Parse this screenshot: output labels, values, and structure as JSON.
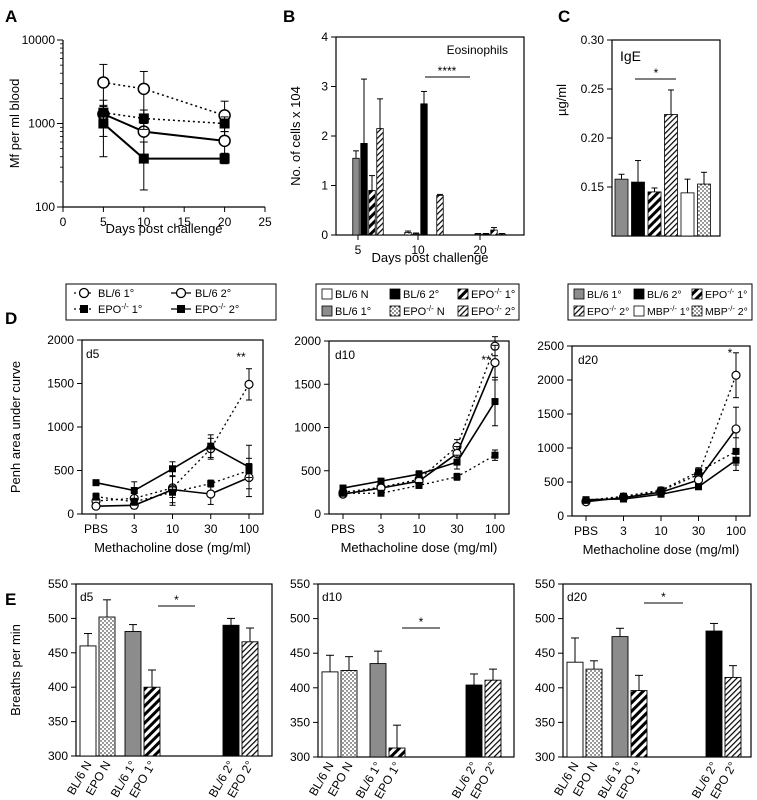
{
  "figure": {
    "panel_letters": [
      "A",
      "B",
      "C",
      "D",
      "E"
    ],
    "colors": {
      "black": "#000000",
      "gray": "#8c8c8c",
      "white": "#ffffff"
    }
  },
  "chart_data": [
    {
      "id": "A",
      "type": "line",
      "scale_y": "log",
      "xlabel": "Days post challenge",
      "ylabel": "Mf per ml  blood",
      "xlim": [
        0,
        25
      ],
      "ylim": [
        100,
        10000
      ],
      "xticks": [
        0,
        5,
        10,
        15,
        20,
        25
      ],
      "yticks": [
        100,
        1000,
        10000
      ],
      "ytick_labels": [
        "100",
        "1000",
        "10000"
      ],
      "x": [
        5,
        10,
        20
      ],
      "series": [
        {
          "name": "BL/6 1°",
          "marker": "open-circle",
          "dash": "dotted",
          "values": [
            3100,
            2600,
            1250
          ],
          "err": [
            2000,
            1600,
            600
          ]
        },
        {
          "name": "BL/6 2°",
          "marker": "open-circle",
          "dash": "solid",
          "values": [
            1300,
            800,
            620
          ],
          "err": [
            600,
            400,
            180
          ]
        },
        {
          "name": "EPO-/- 1°",
          "marker": "filled-square",
          "dash": "dotted",
          "values": [
            1350,
            1150,
            1000
          ],
          "err": [
            300,
            300,
            200
          ]
        },
        {
          "name": "EPO-/- 2°",
          "marker": "filled-square",
          "dash": "solid",
          "values": [
            1000,
            380,
            380
          ],
          "err": [
            600,
            220,
            50
          ]
        }
      ]
    },
    {
      "id": "B",
      "type": "bar",
      "annotation": "Eosinophils",
      "xlabel": "Days post challenge",
      "ylabel": "No. of cells x 104",
      "ylim": [
        0,
        4
      ],
      "yticks": [
        0,
        1,
        2,
        3,
        4
      ],
      "categories": [
        "5",
        "10",
        "20"
      ],
      "series": [
        {
          "name": "BL/6 N",
          "pattern": "white",
          "values": [
            0,
            0,
            0
          ],
          "err": [
            0,
            0,
            0
          ]
        },
        {
          "name": "EPO-/- N",
          "pattern": "dots",
          "values": [
            0,
            0.05,
            0
          ],
          "err": [
            0,
            0.03,
            0
          ]
        },
        {
          "name": "BL/6 1°",
          "pattern": "gray",
          "values": [
            1.55,
            0.02,
            0.02
          ],
          "err": [
            0.15,
            0.02,
            0.01
          ]
        },
        {
          "name": "BL/6 2°",
          "pattern": "black",
          "values": [
            1.85,
            2.65,
            0.02
          ],
          "err": [
            1.3,
            0.25,
            0.01
          ]
        },
        {
          "name": "EPO-/- 1°",
          "pattern": "hatch-thick",
          "values": [
            0.9,
            0,
            0.1
          ],
          "err": [
            0.3,
            0,
            0.05
          ]
        },
        {
          "name": "EPO-/- 2°",
          "pattern": "hatch-thin",
          "values": [
            2.15,
            0.8,
            0.02
          ],
          "err": [
            0.6,
            0.02,
            0.01
          ]
        }
      ],
      "significance": {
        "label": "****",
        "day": "10"
      }
    },
    {
      "id": "C",
      "type": "bar",
      "annotation": "IgE",
      "ylabel": "µg/ml",
      "ylim": [
        0.1,
        0.3
      ],
      "yticks": [
        0.15,
        0.2,
        0.25,
        0.3
      ],
      "ytick_labels": [
        "0.15",
        "0.20",
        "0.25",
        "0.30"
      ],
      "series": [
        {
          "name": "BL/6 1°",
          "pattern": "gray",
          "value": 0.158,
          "err": 0.005
        },
        {
          "name": "BL/6 2°",
          "pattern": "black",
          "value": 0.155,
          "err": 0.022
        },
        {
          "name": "EPO-/- 1°",
          "pattern": "hatch-thick",
          "value": 0.145,
          "err": 0.004
        },
        {
          "name": "EPO-/- 2°",
          "pattern": "hatch-thin",
          "value": 0.224,
          "err": 0.025
        },
        {
          "name": "MBP-/- 1°",
          "pattern": "white",
          "value": 0.144,
          "err": 0.014
        },
        {
          "name": "MBP-/- 2°",
          "pattern": "dots",
          "value": 0.153,
          "err": 0.012
        }
      ],
      "significance": {
        "label": "*"
      }
    },
    {
      "id": "D5",
      "type": "line",
      "label": "d5",
      "xlabel": "Methacholine dose (mg/ml)",
      "ylabel": "Penh area under curve",
      "categories": [
        "PBS",
        "3",
        "10",
        "30",
        "100"
      ],
      "ylim": [
        0,
        2000
      ],
      "yticks": [
        0,
        500,
        1000,
        1500,
        2000
      ],
      "series": [
        {
          "name": "BL/6 1°",
          "marker": "open-circle",
          "dash": "dotted",
          "values": [
            150,
            180,
            300,
            750,
            1490
          ],
          "err": [
            40,
            60,
            200,
            120,
            180
          ]
        },
        {
          "name": "BL/6 2°",
          "marker": "open-circle",
          "dash": "solid",
          "values": [
            90,
            100,
            280,
            230,
            420
          ],
          "err": [
            30,
            40,
            150,
            120,
            220
          ]
        },
        {
          "name": "EPO-/- 1°",
          "marker": "filled-square",
          "dash": "dotted",
          "values": [
            200,
            140,
            250,
            350,
            500
          ],
          "err": [
            40,
            40,
            60,
            40,
            80
          ]
        },
        {
          "name": "EPO-/- 2°",
          "marker": "filled-square",
          "dash": "solid",
          "values": [
            360,
            270,
            520,
            780,
            540
          ],
          "err": [
            30,
            100,
            80,
            130,
            250
          ]
        }
      ],
      "significance": {
        "label": "**"
      }
    },
    {
      "id": "D10",
      "type": "line",
      "label": "d10",
      "xlabel": "Methacholine dose (mg/ml)",
      "categories": [
        "PBS",
        "3",
        "10",
        "30",
        "100"
      ],
      "ylim": [
        0,
        2000
      ],
      "yticks": [
        0,
        500,
        1000,
        1500,
        2000
      ],
      "series": [
        {
          "name": "BL/6 1°",
          "marker": "open-circle",
          "dash": "dotted",
          "values": [
            250,
            310,
            400,
            780,
            1940
          ],
          "err": [
            20,
            30,
            40,
            80,
            110
          ]
        },
        {
          "name": "BL/6 2°",
          "marker": "open-circle",
          "dash": "solid",
          "values": [
            230,
            300,
            380,
            700,
            1750
          ],
          "err": [
            20,
            30,
            40,
            80,
            200
          ]
        },
        {
          "name": "EPO-/- 1°",
          "marker": "filled-square",
          "dash": "dotted",
          "values": [
            240,
            240,
            330,
            430,
            680
          ],
          "err": [
            20,
            20,
            30,
            40,
            60
          ]
        },
        {
          "name": "EPO-/- 2°",
          "marker": "filled-square",
          "dash": "solid",
          "values": [
            300,
            380,
            460,
            600,
            1300
          ],
          "err": [
            30,
            30,
            40,
            80,
            280
          ]
        }
      ],
      "significance": {
        "label": "**"
      }
    },
    {
      "id": "D20",
      "type": "line",
      "label": "d20",
      "xlabel": "Methacholine dose (mg/ml)",
      "categories": [
        "PBS",
        "3",
        "10",
        "30",
        "100"
      ],
      "ylim": [
        0,
        2500
      ],
      "yticks": [
        0,
        500,
        1000,
        1500,
        2000,
        2500
      ],
      "series": [
        {
          "name": "BL/6 1°",
          "marker": "open-circle",
          "dash": "dotted",
          "values": [
            220,
            280,
            370,
            610,
            2070
          ],
          "err": [
            20,
            20,
            30,
            60,
            330
          ]
        },
        {
          "name": "BL/6 2°",
          "marker": "open-circle",
          "dash": "solid",
          "values": [
            210,
            270,
            350,
            530,
            1280
          ],
          "err": [
            20,
            20,
            30,
            60,
            320
          ]
        },
        {
          "name": "EPO-/- 1°",
          "marker": "filled-square",
          "dash": "dotted",
          "values": [
            230,
            290,
            380,
            650,
            950
          ],
          "err": [
            20,
            20,
            30,
            60,
            200
          ]
        },
        {
          "name": "EPO-/- 2°",
          "marker": "filled-square",
          "dash": "solid",
          "values": [
            240,
            250,
            320,
            430,
            820
          ],
          "err": [
            20,
            20,
            30,
            40,
            150
          ]
        }
      ],
      "significance": {
        "label": "*"
      }
    },
    {
      "id": "E5",
      "type": "bar",
      "label": "d5",
      "ylabel": "Breaths per min",
      "ylim": [
        300,
        550
      ],
      "yticks": [
        300,
        350,
        400,
        450,
        500,
        550
      ],
      "categories": [
        "BL/6 N",
        "EPO N",
        "BL/6 1°",
        "EPO 1°",
        "BL/6 2°",
        "EPO 2°"
      ],
      "patterns": [
        "white",
        "dots",
        "gray",
        "hatch-thick",
        "black",
        "hatch-thin"
      ],
      "values": [
        460,
        502,
        481,
        400,
        490,
        466
      ],
      "err": [
        18,
        25,
        10,
        25,
        10,
        20
      ],
      "significance": {
        "label": "*"
      }
    },
    {
      "id": "E10",
      "type": "bar",
      "label": "d10",
      "ylim": [
        300,
        550
      ],
      "yticks": [
        300,
        350,
        400,
        450,
        500,
        550
      ],
      "categories": [
        "BL/6 N",
        "EPO N",
        "BL/6 1°",
        "EPO 1°",
        "BL/6 2°",
        "EPO 2°"
      ],
      "patterns": [
        "white",
        "dots",
        "gray",
        "hatch-thick",
        "black",
        "hatch-thin"
      ],
      "values": [
        423,
        425,
        435,
        313,
        404,
        411
      ],
      "err": [
        24,
        20,
        18,
        33,
        16,
        16
      ],
      "significance": {
        "label": "*"
      }
    },
    {
      "id": "E20",
      "type": "bar",
      "label": "d20",
      "ylim": [
        300,
        550
      ],
      "yticks": [
        300,
        350,
        400,
        450,
        500,
        550
      ],
      "categories": [
        "BL/6 N",
        "EPO N",
        "BL/6 1°",
        "EPO 1°",
        "BL/6 2°",
        "EPO 2°"
      ],
      "patterns": [
        "white",
        "dots",
        "gray",
        "hatch-thick",
        "black",
        "hatch-thin"
      ],
      "values": [
        437,
        427,
        474,
        396,
        482,
        415
      ],
      "err": [
        35,
        12,
        12,
        22,
        11,
        17
      ],
      "significance": {
        "label": "*"
      }
    }
  ],
  "legends": {
    "A": [
      "BL/6 1°",
      "BL/6 2°",
      "EPO-/- 1°",
      "EPO-/- 2°"
    ],
    "B": [
      "BL/6 N",
      "BL/6 1°",
      "BL/6 2°",
      "EPO-/- N",
      "EPO-/- 1°",
      "EPO-/- 2°"
    ],
    "C": [
      "BL/6 1°",
      "BL/6 2°",
      "EPO-/- 1°",
      "EPO-/- 2°",
      "MBP-/- 1°",
      "MBP-/- 2°"
    ]
  }
}
